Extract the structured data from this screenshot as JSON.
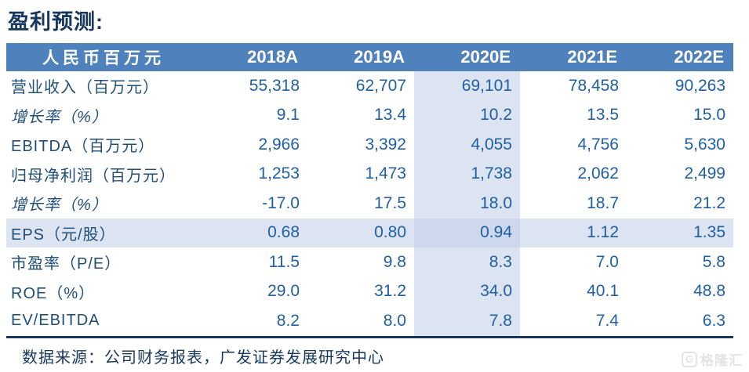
{
  "title": "盈利预测:",
  "colors": {
    "header_bg": "#4f81bd",
    "highlight": "#dce3f1",
    "highlight_strong": "#cdd8ec",
    "navy": "#17375e",
    "label_navy": "#1f4e79",
    "num_blue": "#1f5fa8"
  },
  "table": {
    "unit_header": "人民币百万元",
    "columns": [
      "2018A",
      "2019A",
      "2020E",
      "2021E",
      "2022E"
    ],
    "highlight_column_index": 2,
    "rows": [
      {
        "label": "营业收入（百万元）",
        "italic": false,
        "highlight": false,
        "values": [
          "55,318",
          "62,707",
          "69,101",
          "78,458",
          "90,263"
        ]
      },
      {
        "label": "增长率（%）",
        "italic": true,
        "highlight": false,
        "values": [
          "9.1",
          "13.4",
          "10.2",
          "13.5",
          "15.0"
        ]
      },
      {
        "label": "EBITDA（百万元）",
        "italic": false,
        "highlight": false,
        "values": [
          "2,966",
          "3,392",
          "4,055",
          "4,756",
          "5,630"
        ]
      },
      {
        "label": "归母净利润（百万元）",
        "italic": false,
        "highlight": false,
        "values": [
          "1,253",
          "1,473",
          "1,738",
          "2,062",
          "2,499"
        ]
      },
      {
        "label": "增长率（%）",
        "italic": true,
        "highlight": false,
        "values": [
          "-17.0",
          "17.5",
          "18.0",
          "18.7",
          "21.2"
        ]
      },
      {
        "label": "EPS（元/股）",
        "italic": false,
        "highlight": true,
        "values": [
          "0.68",
          "0.80",
          "0.94",
          "1.12",
          "1.35"
        ]
      },
      {
        "label": "市盈率（P/E）",
        "italic": false,
        "highlight": false,
        "values": [
          "11.5",
          "9.8",
          "8.3",
          "7.0",
          "5.8"
        ]
      },
      {
        "label": "ROE（%）",
        "italic": false,
        "highlight": false,
        "values": [
          "29.0",
          "31.2",
          "34.0",
          "40.1",
          "48.8"
        ]
      },
      {
        "label": "EV/EBITDA",
        "italic": false,
        "highlight": false,
        "values": [
          "8.2",
          "8.0",
          "7.8",
          "7.4",
          "6.3"
        ]
      }
    ]
  },
  "footer": {
    "source": "数据来源：公司财务报表，广发证券发展研究中心"
  },
  "watermark": {
    "logo_letter": "G",
    "brand": "格隆汇"
  }
}
